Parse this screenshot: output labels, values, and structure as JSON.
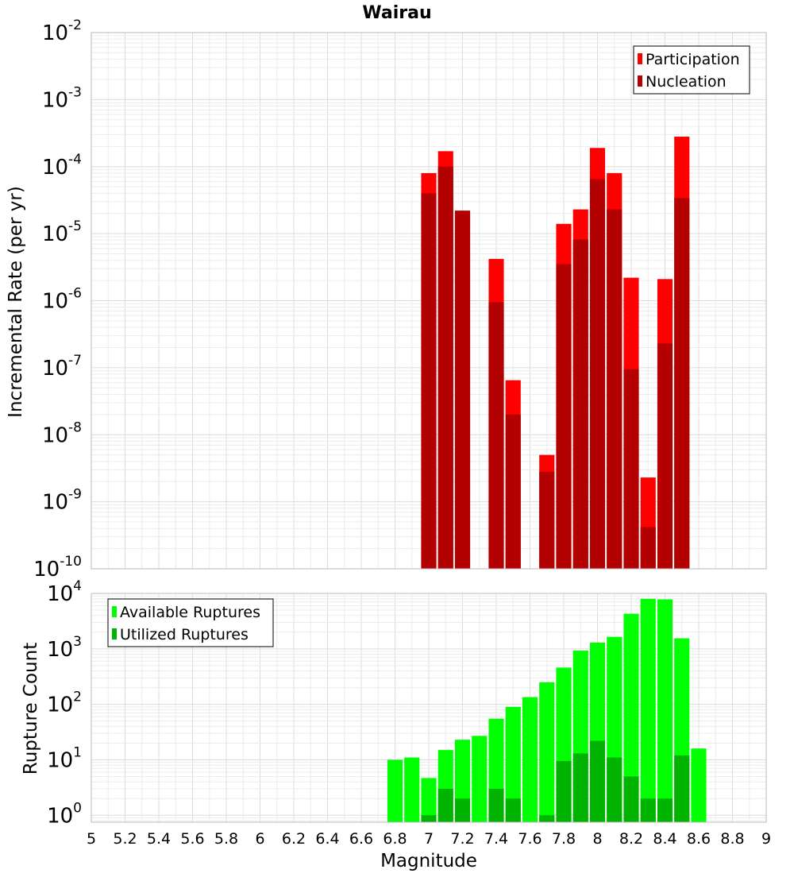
{
  "chart_data": [
    {
      "type": "bar",
      "title": "Wairau",
      "xlabel": "",
      "ylabel": "Incremental Rate (per yr)",
      "yscale": "log",
      "xlim": [
        5,
        9
      ],
      "ylim": [
        1e-10,
        0.01
      ],
      "grid": true,
      "legend_position": "top-right",
      "y_tick_bases": [
        "10",
        "10",
        "10",
        "10",
        "10",
        "10",
        "10",
        "10",
        "10"
      ],
      "y_tick_exponents": [
        "-10",
        "-9",
        "-8",
        "-7",
        "-6",
        "-5",
        "-4",
        "-3",
        "-2"
      ],
      "x": [
        7.0,
        7.1,
        7.2,
        7.4,
        7.5,
        7.7,
        7.8,
        7.9,
        8.0,
        8.1,
        8.2,
        8.3,
        8.4,
        8.5
      ],
      "series": [
        {
          "name": "Participation",
          "color": "#ff0000",
          "values": [
            8e-05,
            0.00017,
            2.2e-05,
            4.2e-06,
            6.5e-08,
            5e-09,
            1.4e-05,
            2.3e-05,
            0.00019,
            8e-05,
            2.2e-06,
            2.3e-09,
            2.1e-06,
            0.00028
          ]
        },
        {
          "name": "Nucleation",
          "color": "#b30000",
          "values": [
            4e-05,
            0.0001,
            2.2e-05,
            9.5e-07,
            2e-08,
            2.8e-09,
            3.5e-06,
            8.2e-06,
            6.5e-05,
            2.3e-05,
            9.5e-08,
            4.2e-10,
            2.3e-07,
            3.4e-05
          ]
        }
      ]
    },
    {
      "type": "bar",
      "title": "",
      "xlabel": "Magnitude",
      "ylabel": "Rupture Count",
      "yscale": "log",
      "xlim": [
        5,
        9
      ],
      "ylim": [
        0.75,
        10000
      ],
      "grid": true,
      "legend_position": "top-left",
      "x_ticks": [
        "5",
        "5.2",
        "5.4",
        "5.6",
        "5.8",
        "6",
        "6.2",
        "6.4",
        "6.6",
        "6.8",
        "7",
        "7.2",
        "7.4",
        "7.6",
        "7.8",
        "8",
        "8.2",
        "8.4",
        "8.6",
        "8.8",
        "9"
      ],
      "y_tick_bases": [
        "10",
        "10",
        "10",
        "10",
        "10"
      ],
      "y_tick_exponents": [
        "0",
        "1",
        "2",
        "3",
        "4"
      ],
      "x": [
        6.8,
        6.9,
        7.0,
        7.1,
        7.2,
        7.3,
        7.4,
        7.5,
        7.6,
        7.7,
        7.8,
        7.9,
        8.0,
        8.1,
        8.2,
        8.3,
        8.4,
        8.5,
        8.6
      ],
      "series": [
        {
          "name": "Available Ruptures",
          "color": "#00ff00",
          "values": [
            10,
            11,
            4.7,
            15,
            23,
            27,
            55,
            90,
            135,
            250,
            460,
            930,
            1300,
            1650,
            4300,
            8000,
            7800,
            1550,
            16
          ]
        },
        {
          "name": "Utilized Ruptures",
          "color": "#00b300",
          "values": [
            null,
            null,
            1,
            3,
            2,
            null,
            3,
            2,
            null,
            1,
            9.5,
            13,
            22,
            11,
            5,
            2,
            2,
            12,
            null
          ]
        }
      ]
    }
  ]
}
